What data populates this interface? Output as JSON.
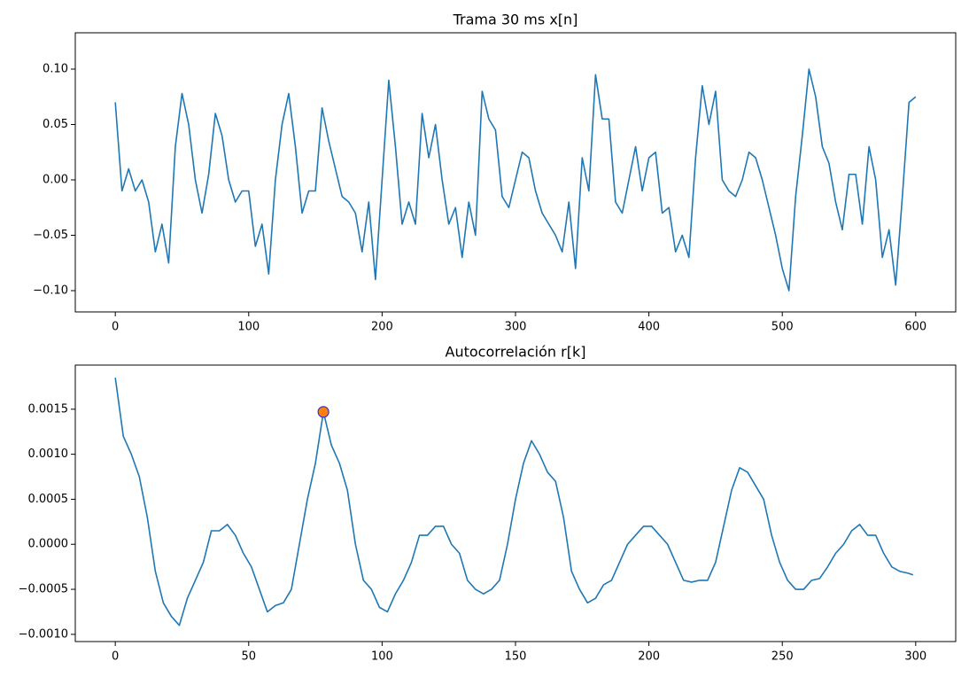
{
  "chart_data": [
    {
      "type": "line",
      "title": "Trama 30 ms x[n]",
      "x": [
        0,
        5,
        10,
        15,
        20,
        25,
        30,
        35,
        40,
        45,
        50,
        55,
        60,
        65,
        70,
        75,
        80,
        85,
        90,
        95,
        100,
        105,
        110,
        115,
        120,
        125,
        130,
        135,
        140,
        145,
        150,
        155,
        160,
        165,
        170,
        175,
        180,
        185,
        190,
        195,
        200,
        205,
        210,
        215,
        220,
        225,
        230,
        235,
        240,
        245,
        250,
        255,
        260,
        265,
        270,
        275,
        280,
        285,
        290,
        295,
        300,
        305,
        310,
        315,
        320,
        325,
        330,
        335,
        340,
        345,
        350,
        355,
        360,
        365,
        370,
        375,
        380,
        385,
        390,
        395,
        400,
        405,
        410,
        415,
        420,
        425,
        430,
        435,
        440,
        445,
        450,
        455,
        460,
        465,
        470,
        475,
        480,
        485,
        490,
        495,
        500,
        505,
        510,
        515,
        520,
        525,
        530,
        535,
        540,
        545,
        550,
        555,
        560,
        565,
        570,
        575,
        580,
        585,
        590,
        595,
        600
      ],
      "series": [
        {
          "color": "#1f77b4",
          "values": [
            0.07,
            -0.01,
            0.01,
            -0.01,
            0.0,
            -0.02,
            -0.065,
            -0.04,
            -0.075,
            0.03,
            0.078,
            0.05,
            0.0,
            -0.03,
            0.005,
            0.06,
            0.04,
            0.0,
            -0.02,
            -0.01,
            -0.01,
            -0.06,
            -0.04,
            -0.085,
            0.0,
            0.05,
            0.078,
            0.03,
            -0.03,
            -0.01,
            -0.01,
            0.065,
            0.035,
            0.01,
            -0.015,
            -0.02,
            -0.03,
            -0.065,
            -0.02,
            -0.09,
            0.0,
            0.09,
            0.03,
            -0.04,
            -0.02,
            -0.04,
            0.06,
            0.02,
            0.05,
            0.0,
            -0.04,
            -0.025,
            -0.07,
            -0.02,
            -0.05,
            0.08,
            0.055,
            0.045,
            -0.015,
            -0.025,
            0.0,
            0.025,
            0.02,
            -0.01,
            -0.03,
            -0.04,
            -0.05,
            -0.065,
            -0.02,
            -0.08,
            0.02,
            -0.01,
            0.095,
            0.055,
            0.055,
            -0.02,
            -0.03,
            0.0,
            0.03,
            -0.01,
            0.02,
            0.025,
            -0.03,
            -0.025,
            -0.065,
            -0.05,
            -0.07,
            0.02,
            0.085,
            0.05,
            0.08,
            0.0,
            -0.01,
            -0.015,
            0.0,
            0.025,
            0.02,
            0.0,
            -0.025,
            -0.05,
            -0.08,
            -0.1,
            -0.015,
            0.04,
            0.1,
            0.075,
            0.03,
            0.015,
            -0.02,
            -0.045,
            0.005,
            0.005,
            -0.04,
            0.03,
            0.0,
            -0.07,
            -0.045,
            -0.095,
            -0.015,
            0.07,
            0.075
          ]
        }
      ],
      "xlim": [
        -30,
        630
      ],
      "ylim": [
        -0.1192,
        0.1328
      ],
      "xticks": [
        0,
        100,
        200,
        300,
        400,
        500,
        600
      ],
      "yticks": [
        {
          "value": -0.1,
          "label": "−0.10"
        },
        {
          "value": -0.05,
          "label": "−0.05"
        },
        {
          "value": 0,
          "label": "0.00"
        },
        {
          "value": 0.05,
          "label": "0.05"
        },
        {
          "value": 0.1,
          "label": "0.10"
        }
      ]
    },
    {
      "type": "line",
      "title": "Autocorrelación r[k]",
      "x": [
        0,
        3,
        6,
        9,
        12,
        15,
        18,
        21,
        24,
        27,
        30,
        33,
        36,
        39,
        42,
        45,
        48,
        51,
        54,
        57,
        60,
        63,
        66,
        69,
        72,
        75,
        78,
        81,
        84,
        87,
        90,
        93,
        96,
        99,
        102,
        105,
        108,
        111,
        114,
        117,
        120,
        123,
        126,
        129,
        132,
        135,
        138,
        141,
        144,
        147,
        150,
        153,
        156,
        159,
        162,
        165,
        168,
        171,
        174,
        177,
        180,
        183,
        186,
        189,
        192,
        195,
        198,
        201,
        204,
        207,
        210,
        213,
        216,
        219,
        222,
        225,
        228,
        231,
        234,
        237,
        240,
        243,
        246,
        249,
        252,
        255,
        258,
        261,
        264,
        267,
        270,
        273,
        276,
        279,
        282,
        285,
        288,
        291,
        294,
        297,
        299
      ],
      "series": [
        {
          "color": "#1f77b4",
          "values": [
            0.00185,
            0.0012,
            0.001,
            0.00075,
            0.0003,
            -0.0003,
            -0.00065,
            -0.0008,
            -0.0009,
            -0.0006,
            -0.0004,
            -0.0002,
            0.00015,
            0.00015,
            0.00022,
            0.0001,
            -0.0001,
            -0.00025,
            -0.0005,
            -0.00075,
            -0.00068,
            -0.00065,
            -0.0005,
            0.0,
            0.0005,
            0.0009,
            0.00147,
            0.0011,
            0.0009,
            0.0006,
            0.0,
            -0.0004,
            -0.0005,
            -0.0007,
            -0.00075,
            -0.00055,
            -0.0004,
            -0.0002,
            0.0001,
            0.0001,
            0.0002,
            0.0002,
            0.0,
            -0.0001,
            -0.0004,
            -0.0005,
            -0.00055,
            -0.0005,
            -0.0004,
            0.0,
            0.0005,
            0.0009,
            0.00115,
            0.001,
            0.0008,
            0.0007,
            0.0003,
            -0.0003,
            -0.0005,
            -0.00065,
            -0.0006,
            -0.00045,
            -0.0004,
            -0.0002,
            0.0,
            0.0001,
            0.0002,
            0.0002,
            0.0001,
            0.0,
            -0.0002,
            -0.0004,
            -0.00042,
            -0.0004,
            -0.0004,
            -0.0002,
            0.0002,
            0.0006,
            0.00085,
            0.0008,
            0.00065,
            0.0005,
            0.0001,
            -0.0002,
            -0.0004,
            -0.0005,
            -0.0005,
            -0.0004,
            -0.00038,
            -0.00025,
            -0.0001,
            0.0,
            0.00015,
            0.00022,
            0.0001,
            0.0001,
            -0.0001,
            -0.00025,
            -0.0003,
            -0.00032,
            -0.00034
          ]
        }
      ],
      "peak": {
        "x": 78,
        "value": 0.00147,
        "color": "#ff7f0e",
        "edge_color": "#3333cc"
      },
      "xlim": [
        -15,
        315
      ],
      "ylim": [
        -0.00108,
        0.00199
      ],
      "xticks": [
        0,
        50,
        100,
        150,
        200,
        250,
        300
      ],
      "yticks": [
        {
          "value": -0.001,
          "label": "−0.0010"
        },
        {
          "value": -0.0005,
          "label": "−0.0005"
        },
        {
          "value": 0,
          "label": "0.0000"
        },
        {
          "value": 0.0005,
          "label": "0.0005"
        },
        {
          "value": 0.001,
          "label": "0.0010"
        },
        {
          "value": 0.0015,
          "label": "0.0015"
        }
      ]
    }
  ]
}
